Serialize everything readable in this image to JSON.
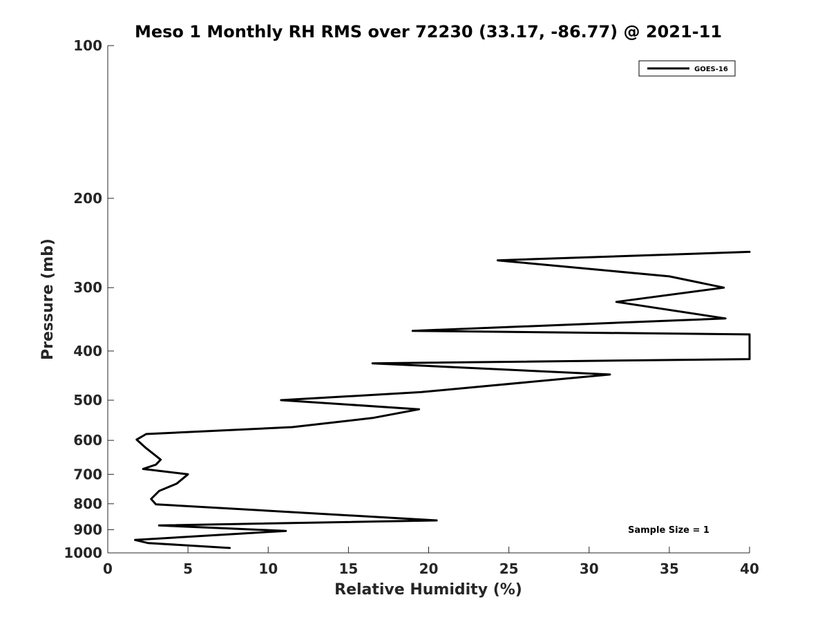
{
  "chart_data": {
    "type": "line",
    "title": "Meso 1 Monthly RH RMS over 72230 (33.17, -86.77) @ 2021-11",
    "xlabel": "Relative Humidity (%)",
    "ylabel": "Pressure (mb)",
    "xlim": [
      0,
      40
    ],
    "ylim": [
      100,
      1000
    ],
    "yscale": "log",
    "y_reversed": true,
    "xticks": [
      0,
      5,
      10,
      15,
      20,
      25,
      30,
      35,
      40
    ],
    "xtick_labels": [
      "0",
      "5",
      "10",
      "15",
      "20",
      "25",
      "30",
      "35",
      "40"
    ],
    "yticks": [
      100,
      200,
      300,
      400,
      500,
      600,
      700,
      800,
      900,
      1000
    ],
    "ytick_labels": [
      "100",
      "200",
      "300",
      "400",
      "500",
      "600",
      "700",
      "800",
      "900",
      "1000"
    ],
    "grid": false,
    "legend_position": "top-right",
    "series": [
      {
        "name": "GOES-16",
        "color": "#000000",
        "x": [
          40,
          24.3,
          35,
          38.4,
          31.7,
          38.5,
          19,
          40,
          40,
          16.5,
          31.3,
          19.5,
          10.8,
          19.4,
          16.5,
          11.5,
          2.4,
          1.8,
          2.4,
          3.3,
          3,
          2.2,
          5,
          4.3,
          3.2,
          2.7,
          3,
          20.5,
          3.2,
          11.1,
          1.7,
          2.5,
          7.6
        ],
        "y": [
          255,
          265,
          285,
          300,
          320,
          345,
          365,
          371,
          415,
          423,
          445,
          482,
          500,
          521,
          542,
          565,
          583,
          598,
          622,
          655,
          670,
          683,
          700,
          730,
          755,
          783,
          802,
          863,
          883,
          905,
          943,
          956,
          978
        ]
      }
    ],
    "annotations": [
      "Sample Size = 1"
    ]
  }
}
